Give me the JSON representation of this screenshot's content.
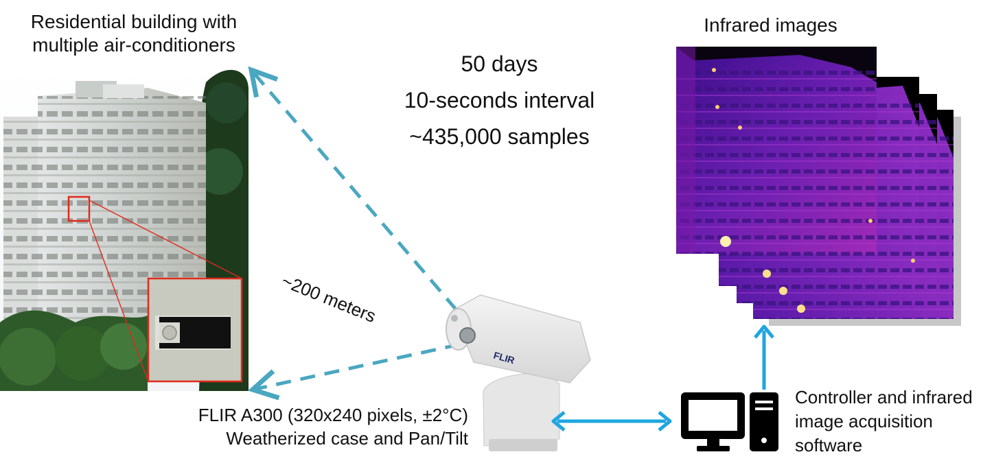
{
  "building": {
    "caption_line1": "Residential building with",
    "caption_line2": "multiple air-conditioners"
  },
  "capture": {
    "duration": "50 days",
    "interval": "10-seconds interval",
    "samples": "~435,000 samples"
  },
  "distance": {
    "label": "~200 meters"
  },
  "camera": {
    "brand": "FLIR",
    "caption_line1": "FLIR A300 (320x240 pixels, ±2°C)",
    "caption_line2": "Weatherized case and Pan/Tilt"
  },
  "infrared": {
    "title": "Infrared images"
  },
  "computer": {
    "caption_line1": "Controller and infrared",
    "caption_line2": "image acquisition",
    "caption_line3": "software"
  },
  "colors": {
    "dashed_arrow": "#4aa7c0",
    "solid_arrow": "#1fa6e0",
    "zoom_box": "#e02a1a"
  }
}
